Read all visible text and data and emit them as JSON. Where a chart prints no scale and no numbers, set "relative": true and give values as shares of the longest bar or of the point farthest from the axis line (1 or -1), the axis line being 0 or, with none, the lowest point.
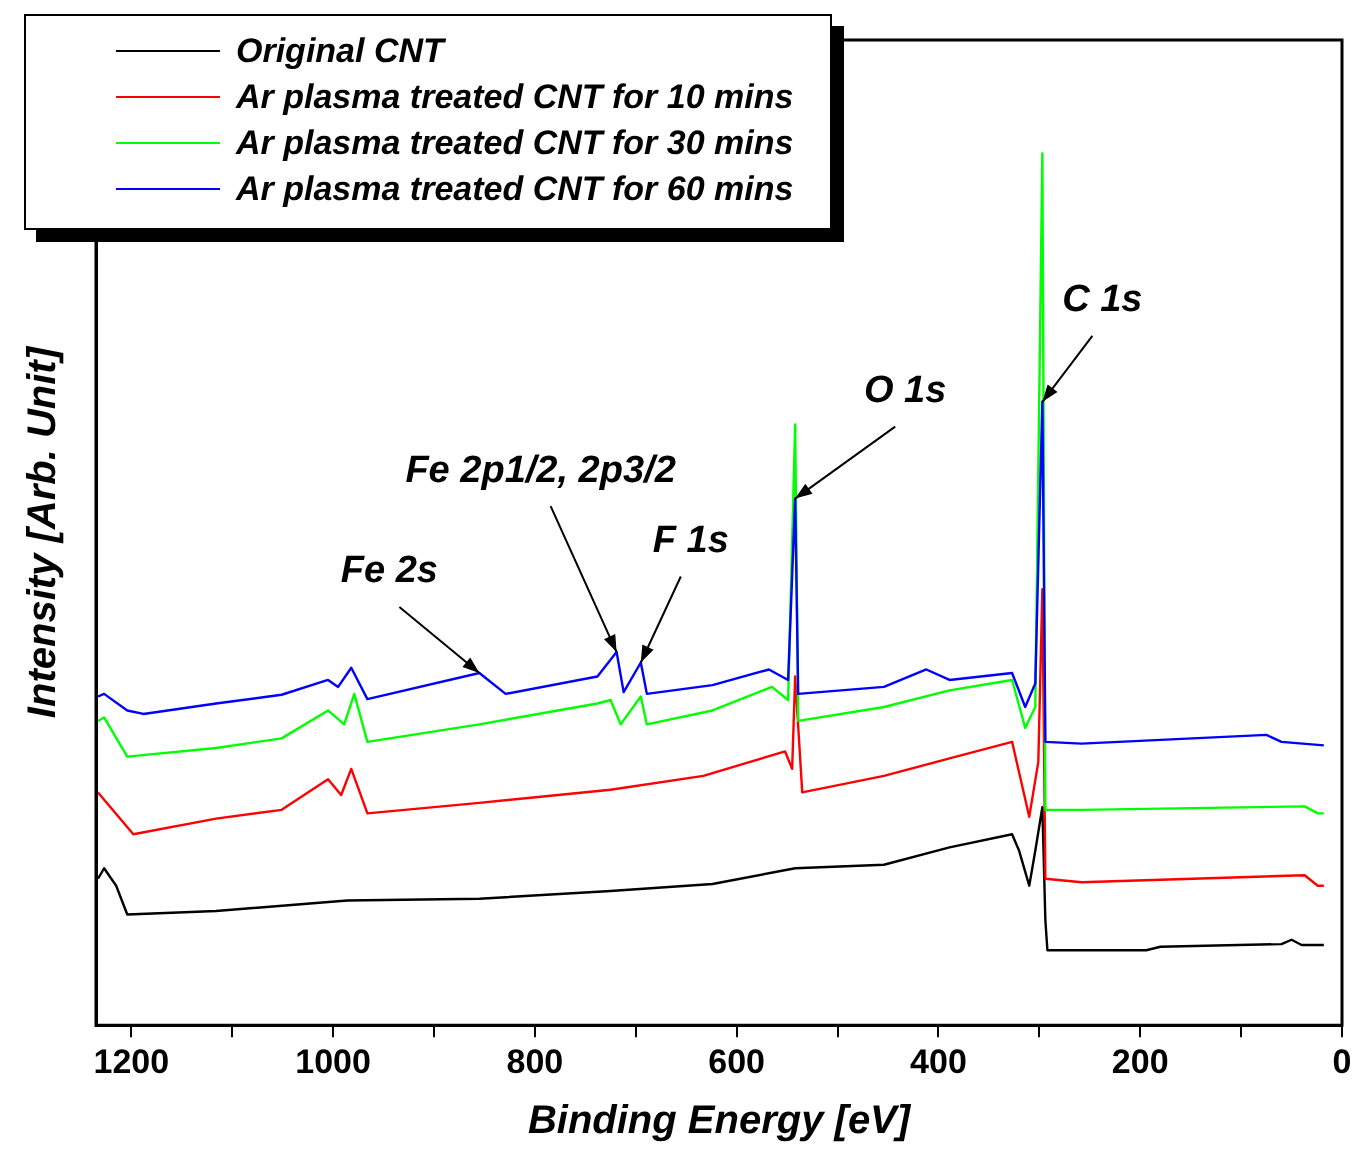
{
  "chart_data": {
    "type": "line",
    "relative": true,
    "xlabel": "Binding Energy [eV]",
    "ylabel": "Intensity [Arb. Unit]",
    "xlim": [
      1235,
      0
    ],
    "xticks": [
      1200,
      {
        "value": 1100,
        "label": null
      },
      1000,
      {
        "value": 900,
        "label": null
      },
      800,
      {
        "value": 700,
        "label": null
      },
      600,
      {
        "value": 500,
        "label": null
      },
      400,
      {
        "value": 300,
        "label": null
      },
      200,
      {
        "value": 100,
        "label": null
      },
      0
    ],
    "tick_labels": "x",
    "grid": false,
    "legend": "top left",
    "marker": "none",
    "line_style": "solid",
    "annotations": [
      {
        "text": "Fe 2s",
        "x": 855,
        "y": 0.404
      },
      {
        "text": "Fe 2p1/2, 2p3/2",
        "x": 719,
        "y": 0.428
      },
      {
        "text": "F 1s",
        "x": 695,
        "y": 0.416
      },
      {
        "text": "O 1s",
        "x": 542,
        "y": 0.604
      },
      {
        "text": "C 1s",
        "x": 297,
        "y": 0.715
      }
    ],
    "series": [
      {
        "name": "Original CNT",
        "color": "#000000",
        "x": [
          1233,
          1227,
          1215,
          1204,
          1116,
          986,
          855,
          725,
          624,
          542,
          454,
          389,
          327,
          320,
          310,
          304,
          297,
          294,
          292,
          194,
          180,
          60,
          50,
          40,
          18
        ],
        "values": [
          0.168,
          0.18,
          0.16,
          0.127,
          0.131,
          0.143,
          0.145,
          0.154,
          0.162,
          0.18,
          0.184,
          0.204,
          0.219,
          0.2,
          0.16,
          0.2,
          0.25,
          0.12,
          0.086,
          0.086,
          0.09,
          0.093,
          0.098,
          0.092,
          0.092
        ]
      },
      {
        "name": "Ar plasma treated CNT for 10 mins",
        "color": "#ff0000",
        "x": [
          1233,
          1198,
          1116,
          1051,
          1005,
          992,
          982,
          966,
          855,
          725,
          633,
          552,
          545,
          542,
          535,
          454,
          389,
          327,
          310,
          301,
          297,
          294,
          258,
          37,
          24,
          18
        ],
        "values": [
          0.267,
          0.219,
          0.237,
          0.247,
          0.282,
          0.264,
          0.294,
          0.243,
          0.255,
          0.27,
          0.286,
          0.314,
          0.294,
          0.4,
          0.267,
          0.286,
          0.306,
          0.325,
          0.239,
          0.302,
          0.5,
          0.168,
          0.164,
          0.172,
          0.16,
          0.16
        ]
      },
      {
        "name": "Ar plasma treated CNT for 30 mins",
        "color": "#00ff00",
        "x": [
          1233,
          1227,
          1204,
          1116,
          1051,
          1005,
          989,
          979,
          966,
          855,
          738,
          725,
          715,
          695,
          689,
          624,
          565,
          549,
          542,
          539,
          454,
          389,
          327,
          314,
          304,
          297,
          294,
          292,
          258,
          37,
          24,
          18
        ],
        "values": [
          0.349,
          0.353,
          0.308,
          0.318,
          0.329,
          0.361,
          0.345,
          0.38,
          0.325,
          0.345,
          0.369,
          0.373,
          0.345,
          0.377,
          0.345,
          0.361,
          0.388,
          0.373,
          0.689,
          0.349,
          0.365,
          0.384,
          0.396,
          0.341,
          0.365,
          1.0,
          0.247,
          0.247,
          0.247,
          0.251,
          0.243,
          0.243
        ]
      },
      {
        "name": "Ar plasma treated CNT for 60 mins",
        "color": "#0000ff",
        "x": [
          1233,
          1227,
          1204,
          1188,
          1116,
          1051,
          1005,
          995,
          982,
          966,
          855,
          829,
          738,
          719,
          712,
          695,
          689,
          624,
          568,
          549,
          542,
          539,
          454,
          412,
          389,
          327,
          314,
          304,
          297,
          294,
          258,
          75,
          60,
          18
        ],
        "values": [
          0.377,
          0.38,
          0.361,
          0.357,
          0.369,
          0.379,
          0.396,
          0.388,
          0.41,
          0.374,
          0.404,
          0.38,
          0.4,
          0.428,
          0.382,
          0.416,
          0.38,
          0.39,
          0.408,
          0.396,
          0.604,
          0.38,
          0.388,
          0.408,
          0.396,
          0.404,
          0.365,
          0.392,
          0.715,
          0.325,
          0.323,
          0.333,
          0.325,
          0.321
        ]
      }
    ]
  }
}
